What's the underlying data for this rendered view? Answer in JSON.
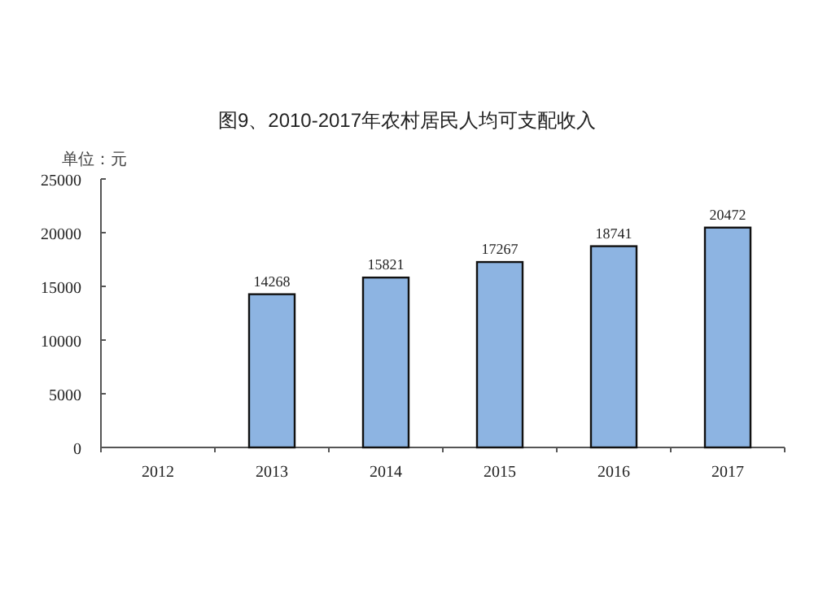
{
  "chart_data": {
    "type": "bar",
    "title": "图9、2010-2017年农村居民人均可支配收入",
    "ylabel": "单位：元",
    "categories": [
      "2012",
      "2013",
      "2014",
      "2015",
      "2016",
      "2017"
    ],
    "values": [
      null,
      14268,
      15821,
      17267,
      18741,
      20472
    ],
    "value_labels": [
      null,
      "14268",
      "15821",
      "17267",
      "18741",
      "20472"
    ],
    "color": "#8db4e2",
    "ylim": [
      0,
      25000
    ],
    "yticks": [
      0,
      5000,
      10000,
      15000,
      20000,
      25000
    ],
    "grid": false
  }
}
